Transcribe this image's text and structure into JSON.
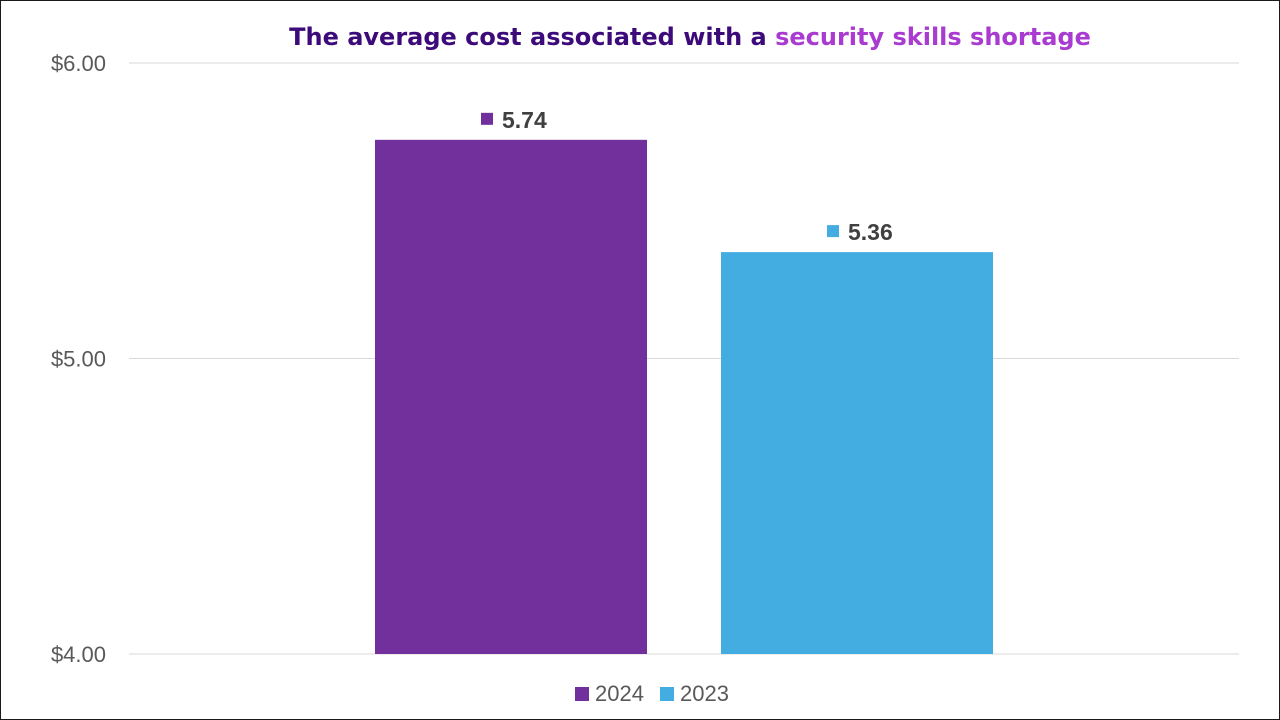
{
  "colors": {
    "title_main": "#3d0a7a",
    "title_accent": "#a93bd0",
    "series_2024": "#71309c",
    "series_2023": "#43ace0",
    "gridline": "#d9d9d9",
    "tick_text": "#595959",
    "value_label": "#404040"
  },
  "chart_data": {
    "type": "bar",
    "title": "The average cost associated with a security skills shortage",
    "title_parts": {
      "main": "The average cost associated with a ",
      "accent": "security skills shortage"
    },
    "xlabel": "",
    "ylabel": "",
    "ylim": [
      4,
      6
    ],
    "y_ticks": [
      {
        "value": 6,
        "label": "$6.00"
      },
      {
        "value": 5,
        "label": "$5.00"
      },
      {
        "value": 4,
        "label": "$4.00"
      }
    ],
    "grid": true,
    "legend_position": "bottom-center",
    "series": [
      {
        "name": "2024",
        "value": 5.74,
        "label": "5.74",
        "color": "#71309c"
      },
      {
        "name": "2023",
        "value": 5.36,
        "label": "5.36",
        "color": "#43ace0"
      }
    ]
  }
}
